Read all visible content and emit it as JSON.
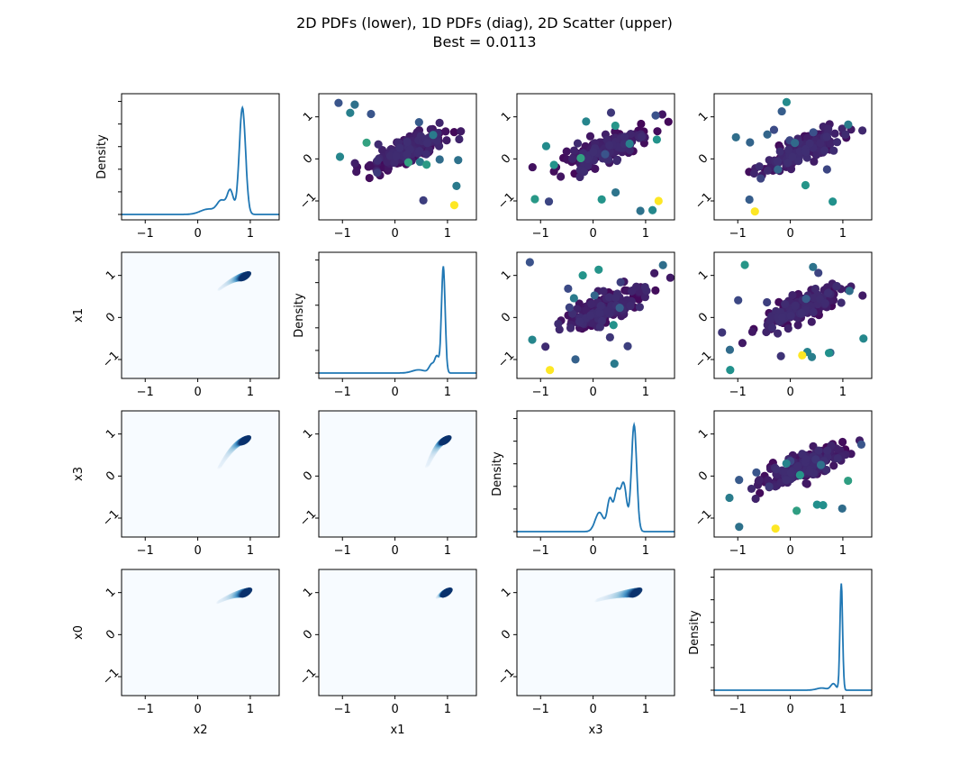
{
  "chart_data": {
    "type": "pairplot",
    "title_line1": "2D PDFs (lower), 1D PDFs (diag), 2D Scatter (upper)",
    "title_line2": "Best = 0.0113",
    "variables": [
      "x2",
      "x1",
      "x3",
      "x0"
    ],
    "axis_range": [
      -1.45,
      1.55
    ],
    "ticks": [
      -1,
      0,
      1
    ],
    "diag_label": "Density",
    "colormap_scatter": [
      "#440154",
      "#3b528b",
      "#21918c",
      "#5ec962",
      "#fde725"
    ],
    "colormap_density": [
      "#f7fbff",
      "#deebf7",
      "#9ecae1",
      "#4292c6",
      "#08306b"
    ],
    "line_color": "#1f77b4",
    "diagonal": [
      {
        "variable": "x2",
        "peak": 0.85,
        "peak_width": 0.06,
        "tail": [
          [
            0.45,
            0.12,
            0.08
          ],
          [
            0.62,
            0.22,
            0.06
          ],
          [
            0.2,
            0.05,
            0.15
          ]
        ]
      },
      {
        "variable": "x1",
        "peak": 0.92,
        "peak_width": 0.035,
        "tail": [
          [
            0.7,
            0.08,
            0.05
          ],
          [
            0.45,
            0.03,
            0.12
          ],
          [
            0.8,
            0.15,
            0.04
          ]
        ]
      },
      {
        "variable": "x3",
        "peak": 0.78,
        "peak_width": 0.05,
        "tail": [
          [
            0.58,
            0.45,
            0.06
          ],
          [
            0.32,
            0.3,
            0.05
          ],
          [
            0.12,
            0.18,
            0.08
          ],
          [
            0.45,
            0.35,
            0.05
          ]
        ]
      },
      {
        "variable": "x0",
        "peak": 0.97,
        "peak_width": 0.025,
        "tail": [
          [
            0.82,
            0.06,
            0.05
          ],
          [
            0.6,
            0.02,
            0.1
          ]
        ]
      }
    ],
    "lower_kde": [
      {
        "row": 1,
        "col": 0,
        "x": "x2",
        "y": "x1",
        "from": [
          0.42,
          0.68
        ],
        "to": [
          0.9,
          0.98
        ]
      },
      {
        "row": 2,
        "col": 0,
        "x": "x2",
        "y": "x3",
        "from": [
          0.42,
          0.22
        ],
        "to": [
          0.9,
          0.85
        ]
      },
      {
        "row": 2,
        "col": 1,
        "x": "x1",
        "y": "x3",
        "from": [
          0.62,
          0.25
        ],
        "to": [
          0.96,
          0.85
        ]
      },
      {
        "row": 3,
        "col": 0,
        "x": "x2",
        "y": "x0",
        "from": [
          0.4,
          0.78
        ],
        "to": [
          0.92,
          1.0
        ]
      },
      {
        "row": 3,
        "col": 1,
        "x": "x1",
        "y": "x0",
        "from": [
          0.82,
          0.9
        ],
        "to": [
          0.98,
          1.0
        ]
      },
      {
        "row": 3,
        "col": 2,
        "x": "x3",
        "y": "x0",
        "from": [
          0.08,
          0.82
        ],
        "to": [
          0.82,
          1.0
        ]
      }
    ],
    "scatter_points": 200,
    "upper_cells": [
      [
        0,
        1
      ],
      [
        0,
        2
      ],
      [
        0,
        3
      ],
      [
        1,
        2
      ],
      [
        1,
        3
      ],
      [
        2,
        3
      ]
    ]
  }
}
